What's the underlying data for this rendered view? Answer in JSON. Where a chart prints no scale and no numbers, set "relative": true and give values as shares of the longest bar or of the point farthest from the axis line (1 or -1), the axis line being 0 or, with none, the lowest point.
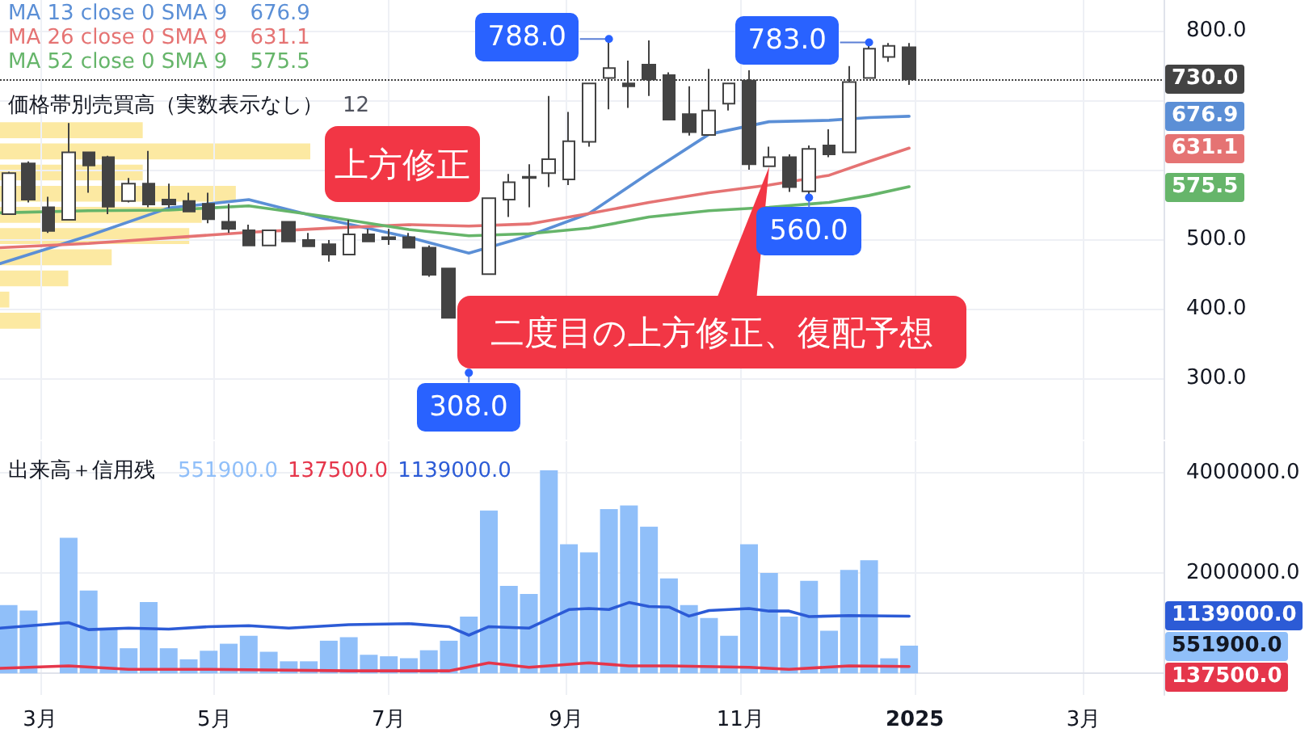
{
  "chart_data": [
    {
      "type": "candlestick",
      "legend": "top left",
      "grid": true,
      "tick_labels": "y",
      "xlim": [
        "2024-02-16",
        "2025-03-29"
      ],
      "xticks": [
        {
          "value": "2024-03-01",
          "label": null
        },
        {
          "value": "2024-05-01",
          "label": null
        },
        {
          "value": "2024-07-01",
          "label": null
        },
        {
          "value": "2024-09-01",
          "label": null
        },
        {
          "value": "2024-11-01",
          "label": null
        },
        {
          "value": "2025-01-01",
          "label": null
        },
        {
          "value": "2025-03-01",
          "label": null
        }
      ],
      "ylim": [
        212,
        844
      ],
      "yticks": [
        {
          "value": 300,
          "label": "300.0"
        },
        {
          "value": 400,
          "label": "400.0"
        },
        {
          "value": 500,
          "label": "500.0"
        },
        {
          "value": 600,
          "label": null
        },
        {
          "value": 700,
          "label": null
        },
        {
          "value": 800,
          "label": "800.0"
        }
      ],
      "ref_lines": [
        {
          "axis": "y",
          "value": 730,
          "label": "730.0",
          "color": "#434343",
          "line_style": "dotted"
        }
      ],
      "annotations": [
        "上方修正",
        "二度目の上方修正、復配予想",
        {
          "text": "788.0",
          "x": "2024-09-16",
          "y": 788
        },
        {
          "text": "783.0",
          "x": "2024-12-16",
          "y": 783
        },
        {
          "text": "308.0",
          "x": "2024-07-29",
          "y": 308
        },
        {
          "text": "560.0",
          "x": "2024-11-25",
          "y": 560
        },
        "676.9",
        "631.1",
        "575.5"
      ],
      "series": [
        {
          "type": "candlestick",
          "color": "#434343",
          "x": [
            "2024-02-19",
            "2024-02-26",
            "2024-03-04",
            "2024-03-11",
            "2024-03-18",
            "2024-03-25",
            "2024-04-01",
            "2024-04-08",
            "2024-04-15",
            "2024-04-22",
            "2024-04-29",
            "2024-05-06",
            "2024-05-13",
            "2024-05-20",
            "2024-05-27",
            "2024-06-03",
            "2024-06-10",
            "2024-06-17",
            "2024-06-24",
            "2024-07-01",
            "2024-07-08",
            "2024-07-15",
            "2024-07-22",
            "2024-08-05",
            "2024-08-12",
            "2024-08-19",
            "2024-08-26",
            "2024-09-02",
            "2024-09-09",
            "2024-09-16",
            "2024-09-23",
            "2024-09-30",
            "2024-10-07",
            "2024-10-14",
            "2024-10-21",
            "2024-10-28",
            "2024-11-04",
            "2024-11-11",
            "2024-11-18",
            "2024-11-25",
            "2024-12-02",
            "2024-12-09",
            "2024-12-16",
            "2024-12-23",
            "2024-12-30"
          ],
          "ohlc": [
            [
              536,
              597,
              535,
              595
            ],
            [
              609,
              612,
              553,
              557
            ],
            [
              546,
              561,
              509,
              512
            ],
            [
              528,
              667,
              528,
              625
            ],
            [
              625,
              625,
              567,
              606
            ],
            [
              618,
              620,
              536,
              547
            ],
            [
              555,
              588,
              553,
              580
            ],
            [
              580,
              627,
              546,
              550
            ],
            [
              557,
              580,
              545,
              550
            ],
            [
              555,
              567,
              539,
              540
            ],
            [
              551,
              567,
              523,
              529
            ],
            [
              525,
              551,
              509,
              515
            ],
            [
              513,
              521,
              491,
              491
            ],
            [
              491,
              513,
              491,
              513
            ],
            [
              525,
              525,
              497,
              497
            ],
            [
              499,
              509,
              490,
              490
            ],
            [
              493,
              499,
              468,
              478
            ],
            [
              478,
              528,
              478,
              507
            ],
            [
              507,
              515,
              496,
              497
            ],
            [
              503,
              515,
              492,
              500
            ],
            [
              503,
              509,
              487,
              488
            ],
            [
              488,
              491,
              446,
              449
            ],
            [
              458,
              458,
              387,
              387
            ],
            [
              450,
              559,
              450,
              559
            ],
            [
              557,
              594,
              532,
              582
            ],
            [
              590,
              608,
              546,
              588
            ],
            [
              595,
              706,
              575,
              615
            ],
            [
              586,
              683,
              578,
              641
            ],
            [
              640,
              724,
              633,
              724
            ],
            [
              732,
              788,
              687,
              746
            ],
            [
              724,
              757,
              689,
              720
            ],
            [
              751,
              786,
              706,
              730
            ],
            [
              736,
              740,
              672,
              672
            ],
            [
              680,
              720,
              649,
              654
            ],
            [
              650,
              745,
              650,
              685
            ],
            [
              695,
              724,
              685,
              724
            ],
            [
              728,
              743,
              600,
              608
            ],
            [
              605,
              633,
              605,
              618
            ],
            [
              618,
              622,
              568,
              575
            ],
            [
              569,
              635,
              560,
              630
            ],
            [
              635,
              658,
              618,
              622
            ],
            [
              625,
              749,
              625,
              726
            ],
            [
              732,
              783,
              732,
              774
            ],
            [
              762,
              782,
              755,
              778
            ],
            [
              776,
              782,
              722,
              730
            ]
          ]
        },
        {
          "type": "line",
          "name": "MA 13 close 0 SMA 9",
          "color": "#5b8fd6",
          "x": [
            "2024-02-16",
            "2024-03-18",
            "2024-04-15",
            "2024-05-13",
            "2024-06-10",
            "2024-07-08",
            "2024-07-29",
            "2024-08-19",
            "2024-09-09",
            "2024-09-30",
            "2024-10-21",
            "2024-11-11",
            "2024-12-02",
            "2024-12-16",
            "2024-12-30"
          ],
          "values": [
            465,
            505,
            545,
            557,
            528,
            503,
            480,
            505,
            537,
            595,
            651,
            669,
            671,
            675,
            676.9
          ]
        },
        {
          "type": "line",
          "name": "MA 26 close 0 SMA 9",
          "color": "#e57373",
          "x": [
            "2024-02-16",
            "2024-03-18",
            "2024-04-15",
            "2024-05-13",
            "2024-06-10",
            "2024-07-08",
            "2024-07-29",
            "2024-08-19",
            "2024-09-09",
            "2024-09-30",
            "2024-10-21",
            "2024-11-11",
            "2024-12-02",
            "2024-12-16",
            "2024-12-30"
          ],
          "values": [
            488,
            494,
            502,
            510,
            516,
            521,
            519,
            522,
            537,
            553,
            567,
            578,
            592,
            612,
            631.1
          ]
        },
        {
          "type": "line",
          "name": "MA 52 close 0 SMA 9",
          "color": "#66b56a",
          "x": [
            "2024-02-16",
            "2024-03-18",
            "2024-04-15",
            "2024-05-13",
            "2024-06-10",
            "2024-07-08",
            "2024-07-29",
            "2024-08-19",
            "2024-09-09",
            "2024-09-30",
            "2024-10-21",
            "2024-11-11",
            "2024-12-02",
            "2024-12-16",
            "2024-12-30"
          ],
          "values": [
            538,
            541,
            542,
            548,
            532,
            514,
            505,
            508,
            516,
            532,
            541,
            546,
            553,
            563,
            575.5
          ]
        }
      ]
    },
    {
      "type": "bar",
      "orientation": "horizontal",
      "relative": true,
      "tick_labels": false,
      "title": "価格帯別売買高（実数表示なし）",
      "annotations": [
        "12"
      ],
      "color": "#fce9a2",
      "categories": [
        null,
        null,
        null,
        null,
        null,
        null,
        null,
        null,
        null,
        null
      ],
      "values": [
        0.46,
        1,
        0.46,
        0.76,
        0.65,
        0.61,
        0.36,
        0.22,
        0.03,
        0.13
      ]
    },
    {
      "type": "bar",
      "title": "出来高＋信用残",
      "grid": true,
      "xlim": [
        "2024-02-16",
        "2025-03-29"
      ],
      "xticks": [
        {
          "value": "2024-03-01",
          "label": "3月"
        },
        {
          "value": "2024-05-01",
          "label": "5月"
        },
        {
          "value": "2024-07-01",
          "label": "7月"
        },
        {
          "value": "2024-09-01",
          "label": "9月"
        },
        {
          "value": "2024-11-01",
          "label": "11月"
        },
        {
          "value": "2025-01-01",
          "label": "2025"
        },
        {
          "value": "2025-03-01",
          "label": "3月"
        }
      ],
      "ylim": [
        -430000,
        4620000
      ],
      "yticks": [
        {
          "value": 0,
          "label": null
        },
        {
          "value": 2000000,
          "label": "2000000.0"
        },
        {
          "value": 4000000,
          "label": "4000000.0"
        }
      ],
      "annotations": [
        "551900.0",
        "137500.0",
        "1139000.0"
      ],
      "series": [
        {
          "type": "bar",
          "color": "#90bff9",
          "x": [
            "2024-02-19",
            "2024-02-26",
            "2024-03-04",
            "2024-03-11",
            "2024-03-18",
            "2024-03-25",
            "2024-04-01",
            "2024-04-08",
            "2024-04-15",
            "2024-04-22",
            "2024-04-29",
            "2024-05-06",
            "2024-05-13",
            "2024-05-20",
            "2024-05-27",
            "2024-06-03",
            "2024-06-10",
            "2024-06-17",
            "2024-06-24",
            "2024-07-01",
            "2024-07-08",
            "2024-07-15",
            "2024-07-22",
            "2024-07-29",
            "2024-08-05",
            "2024-08-12",
            "2024-08-19",
            "2024-08-26",
            "2024-09-02",
            "2024-09-09",
            "2024-09-16",
            "2024-09-23",
            "2024-09-30",
            "2024-10-07",
            "2024-10-14",
            "2024-10-21",
            "2024-10-28",
            "2024-11-04",
            "2024-11-11",
            "2024-11-18",
            "2024-11-25",
            "2024-12-02",
            "2024-12-09",
            "2024-12-16",
            "2024-12-23",
            "2024-12-30"
          ],
          "values": [
            1360000,
            1250000,
            null,
            2700000,
            1650000,
            900000,
            500000,
            1420000,
            500000,
            280000,
            450000,
            590000,
            750000,
            430000,
            240000,
            240000,
            650000,
            720000,
            370000,
            340000,
            300000,
            460000,
            650000,
            1130000,
            3240000,
            1740000,
            1580000,
            4040000,
            2570000,
            2410000,
            3270000,
            3340000,
            2920000,
            1890000,
            1360000,
            1100000,
            750000,
            2570000,
            2000000,
            1130000,
            1840000,
            850000,
            2060000,
            2250000,
            300000,
            551900
          ]
        },
        {
          "type": "line",
          "color": "#e5364b",
          "x": [
            "2024-02-16",
            "2024-03-11",
            "2024-04-01",
            "2024-04-29",
            "2024-06-17",
            "2024-07-22",
            "2024-08-05",
            "2024-08-19",
            "2024-09-09",
            "2024-09-23",
            "2024-10-07",
            "2024-11-04",
            "2024-11-18",
            "2024-12-09",
            "2024-12-30"
          ],
          "values": [
            100000,
            150000,
            80000,
            80000,
            50000,
            50000,
            210000,
            120000,
            210000,
            150000,
            150000,
            120000,
            80000,
            150000,
            137500
          ]
        },
        {
          "type": "line",
          "color": "#2c5bd6",
          "x": [
            "2024-02-16",
            "2024-03-11",
            "2024-03-18",
            "2024-04-01",
            "2024-04-15",
            "2024-04-29",
            "2024-05-13",
            "2024-05-27",
            "2024-06-17",
            "2024-07-08",
            "2024-07-22",
            "2024-07-29",
            "2024-08-05",
            "2024-08-19",
            "2024-09-02",
            "2024-09-09",
            "2024-09-16",
            "2024-09-23",
            "2024-09-30",
            "2024-10-07",
            "2024-10-14",
            "2024-10-21",
            "2024-11-04",
            "2024-11-11",
            "2024-11-18",
            "2024-11-25",
            "2024-12-09",
            "2024-12-30"
          ],
          "values": [
            900000,
            1010000,
            870000,
            900000,
            880000,
            930000,
            950000,
            900000,
            970000,
            990000,
            930000,
            760000,
            930000,
            900000,
            1270000,
            1290000,
            1270000,
            1410000,
            1330000,
            1320000,
            1140000,
            1250000,
            1290000,
            1240000,
            1240000,
            1130000,
            1150000,
            1139000
          ]
        }
      ]
    }
  ]
}
